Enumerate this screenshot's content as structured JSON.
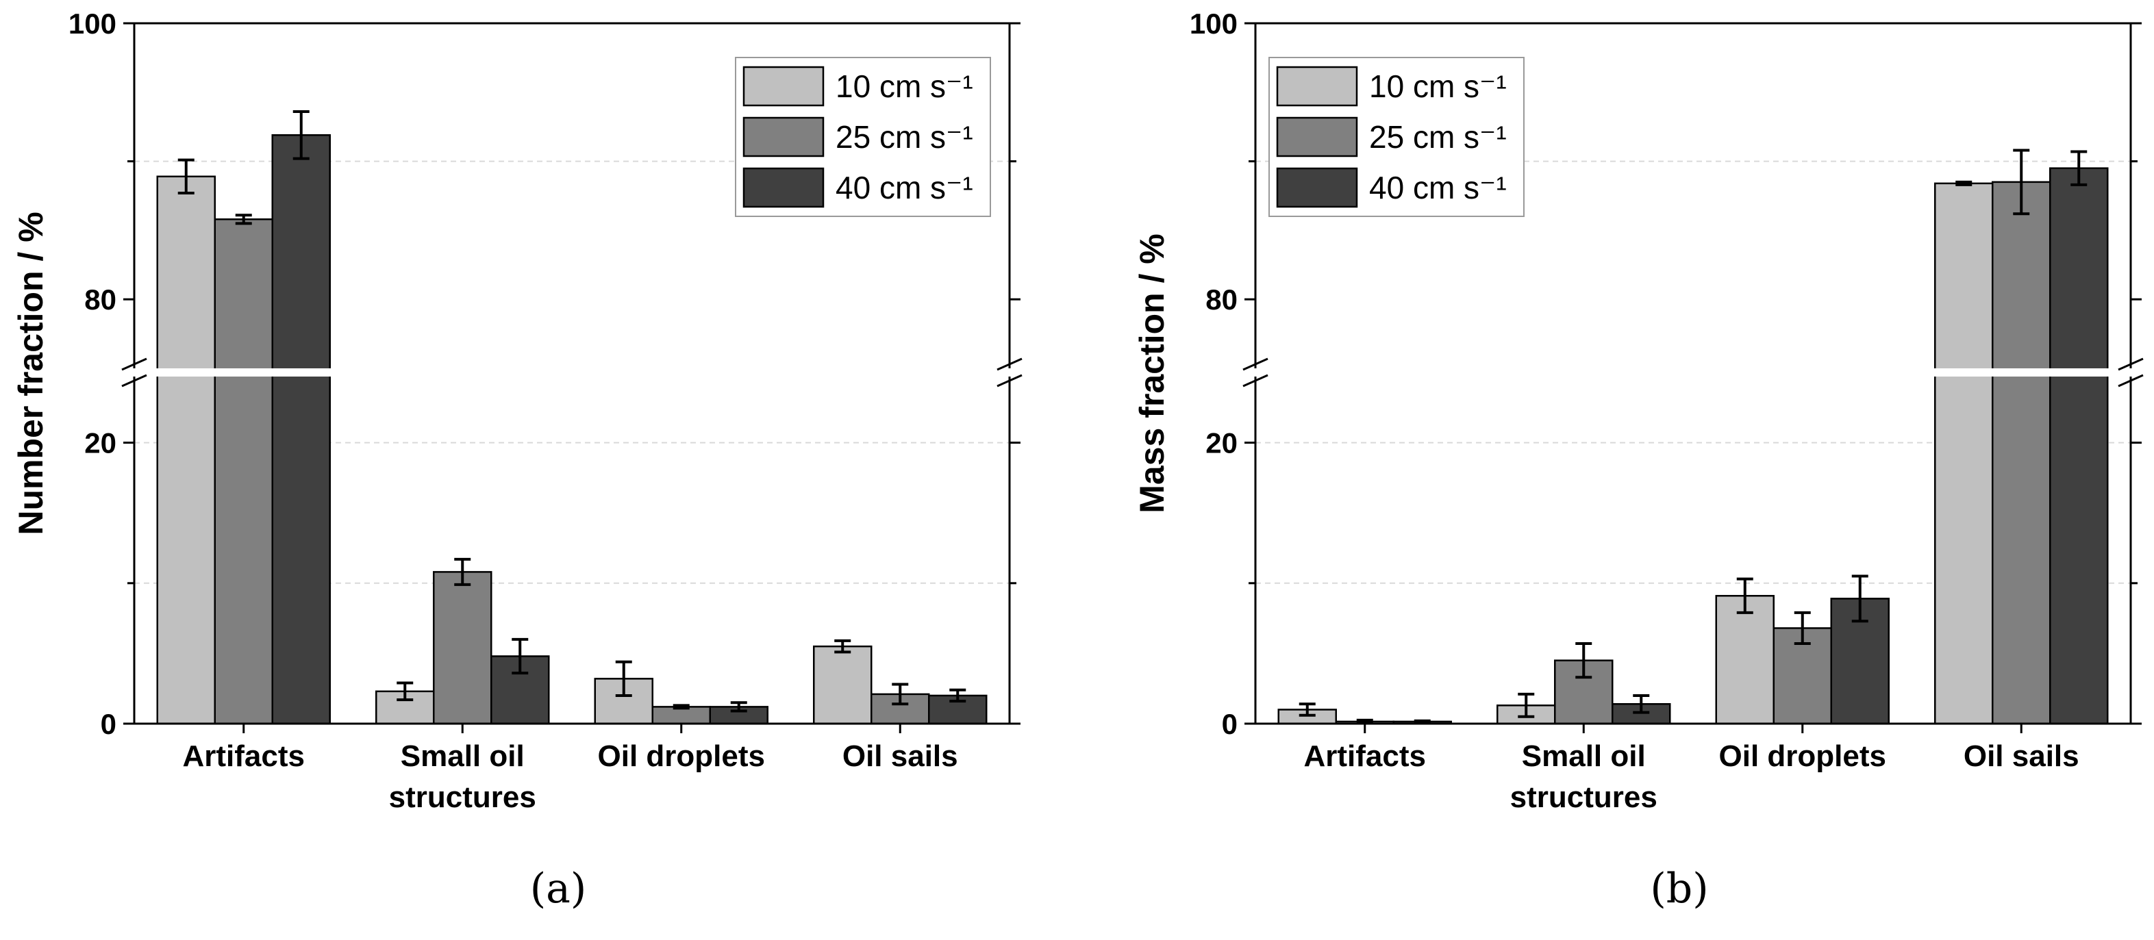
{
  "colors": {
    "series": [
      "#c0c0c0",
      "#808080",
      "#404040"
    ],
    "axis": "#000000",
    "grid": "#d9d9d9"
  },
  "legend": [
    "10 cm s⁻¹",
    "25 cm s⁻¹",
    "40 cm s⁻¹"
  ],
  "chart_data": [
    {
      "type": "bar",
      "panel_label": "(a)",
      "ylabel": "Number fraction / %",
      "broken_axis": {
        "lower": [
          0,
          25
        ],
        "upper": [
          75,
          100
        ]
      },
      "yticks_lower": [
        "0",
        "20"
      ],
      "yticks_upper": [
        "80",
        "100"
      ],
      "grid": true,
      "legend_position": "top-right",
      "categories": [
        "Artifacts",
        "Small oil\nstructures",
        "Oil droplets",
        "Oil sails"
      ],
      "series": [
        {
          "name": "10 cm s⁻¹",
          "values": [
            88.9,
            2.3,
            3.2,
            5.5
          ],
          "errors": [
            1.2,
            0.6,
            1.2,
            0.4
          ]
        },
        {
          "name": "25 cm s⁻¹",
          "values": [
            85.8,
            10.8,
            1.2,
            2.1
          ],
          "errors": [
            0.3,
            0.9,
            0.1,
            0.7
          ]
        },
        {
          "name": "40 cm s⁻¹",
          "values": [
            91.9,
            4.8,
            1.2,
            2.0
          ],
          "errors": [
            1.7,
            1.2,
            0.3,
            0.4
          ]
        }
      ]
    },
    {
      "type": "bar",
      "panel_label": "(b)",
      "ylabel": "Mass fraction / %",
      "broken_axis": {
        "lower": [
          0,
          25
        ],
        "upper": [
          75,
          100
        ]
      },
      "yticks_lower": [
        "0",
        "20"
      ],
      "yticks_upper": [
        "80",
        "100"
      ],
      "grid": true,
      "legend_position": "top-left",
      "categories": [
        "Artifacts",
        "Small oil\nstructures",
        "Oil droplets",
        "Oil sails"
      ],
      "series": [
        {
          "name": "10 cm s⁻¹",
          "values": [
            1.0,
            1.3,
            9.1,
            88.4
          ],
          "errors": [
            0.4,
            0.8,
            1.2,
            0.1
          ]
        },
        {
          "name": "25 cm s⁻¹",
          "values": [
            0.15,
            4.5,
            6.8,
            88.5
          ],
          "errors": [
            0.1,
            1.2,
            1.1,
            2.3
          ]
        },
        {
          "name": "40 cm s⁻¹",
          "values": [
            0.15,
            1.4,
            8.9,
            89.5
          ],
          "errors": [
            0.05,
            0.6,
            1.6,
            1.2
          ]
        }
      ]
    }
  ]
}
